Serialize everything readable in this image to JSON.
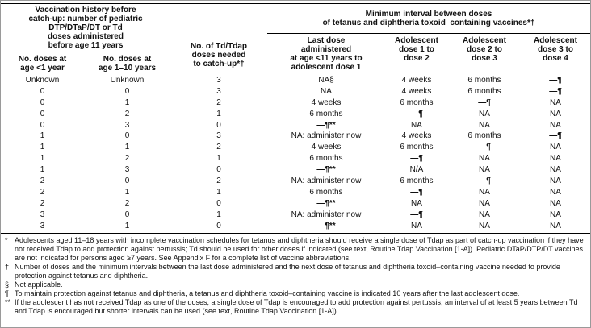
{
  "colors": {
    "background": "#ffffff",
    "text": "#111111",
    "rule": "#000000",
    "outer_border": "#9a9a9a"
  },
  "table": {
    "left_group_title": "Vaccination history before\ncatch-up: number of pediatric\nDTP/DTaP/DT or Td\ndoses administered\nbefore age 11 years",
    "right_group_title": "Minimum interval between doses\nof tetanus and diphtheria toxoid–containing vaccines*†",
    "columns": [
      "No. doses at\nage <1 year",
      "No. doses at\nage 1–10 years",
      "No. of Td/Tdap\ndoses needed\nto catch-up*†",
      "Last dose\nadministered\nat age <11 years to\nadolescent dose 1",
      "Adolescent\ndose 1 to\ndose 2",
      "Adolescent\ndose 2 to\ndose 3",
      "Adolescent\ndose 3 to\ndose 4"
    ],
    "rows": [
      [
        "Unknown",
        "Unknown",
        "3",
        "NA§",
        "4 weeks",
        "6 months",
        "—¶"
      ],
      [
        "0",
        "0",
        "3",
        "NA",
        "4 weeks",
        "6 months",
        "—¶"
      ],
      [
        "0",
        "1",
        "2",
        "4 weeks",
        "6 months",
        "—¶",
        "NA"
      ],
      [
        "0",
        "2",
        "1",
        "6 months",
        "—¶",
        "NA",
        "NA"
      ],
      [
        "0",
        "3",
        "0",
        "—¶**",
        "NA",
        "NA",
        "NA"
      ],
      [
        "1",
        "0",
        "3",
        "NA: administer now",
        "4 weeks",
        "6 months",
        "—¶"
      ],
      [
        "1",
        "1",
        "2",
        "4 weeks",
        "6 months",
        "—¶",
        "NA"
      ],
      [
        "1",
        "2",
        "1",
        "6 months",
        "—¶",
        "NA",
        "NA"
      ],
      [
        "1",
        "3",
        "0",
        "—¶**",
        "N/A",
        "NA",
        "NA"
      ],
      [
        "2",
        "0",
        "2",
        "NA: administer now",
        "6 months",
        "—¶",
        "NA"
      ],
      [
        "2",
        "1",
        "1",
        "6 months",
        "—¶",
        "NA",
        "NA"
      ],
      [
        "2",
        "2",
        "0",
        "—¶**",
        "NA",
        "NA",
        "NA"
      ],
      [
        "3",
        "0",
        "1",
        "NA: administer now",
        "—¶",
        "NA",
        "NA"
      ],
      [
        "3",
        "1",
        "0",
        "—¶**",
        "NA",
        "NA",
        "NA"
      ]
    ],
    "footnotes": [
      {
        "symbol": "*",
        "text": "Adolescents aged 11–18 years with incomplete vaccination schedules for tetanus and diphtheria should receive a single dose of Tdap as part of catch-up vaccination if they have not received Tdap to add protection against pertussis; Td should be used for other doses if indicated (see text, Routine Tdap Vaccination [1-A]). Pediatric DTaP/DTP/DT vaccines are not indicated for persons aged ≥7 years. See Appendix F for a complete list of vaccine abbreviations."
      },
      {
        "symbol": "†",
        "text": "Number of doses and the minimum intervals between the last dose administered and the next dose of tetanus and diphtheria toxoid–containing vaccine needed to provide protection against tetanus and diphtheria."
      },
      {
        "symbol": "§",
        "text": "Not applicable."
      },
      {
        "symbol": "¶",
        "text": "To maintain protection against tetanus and diphtheria, a tetanus and diphtheria toxoid–containing vaccine is indicated 10 years after the last adolescent dose."
      },
      {
        "symbol": "**",
        "text": "If the adolescent has not received Tdap as one of the doses, a single dose of Tdap is encouraged to add protection against pertussis; an interval of at least 5 years between Td and Tdap is encouraged but shorter intervals can be used (see text, Routine Tdap Vaccination [1-A])."
      }
    ]
  }
}
